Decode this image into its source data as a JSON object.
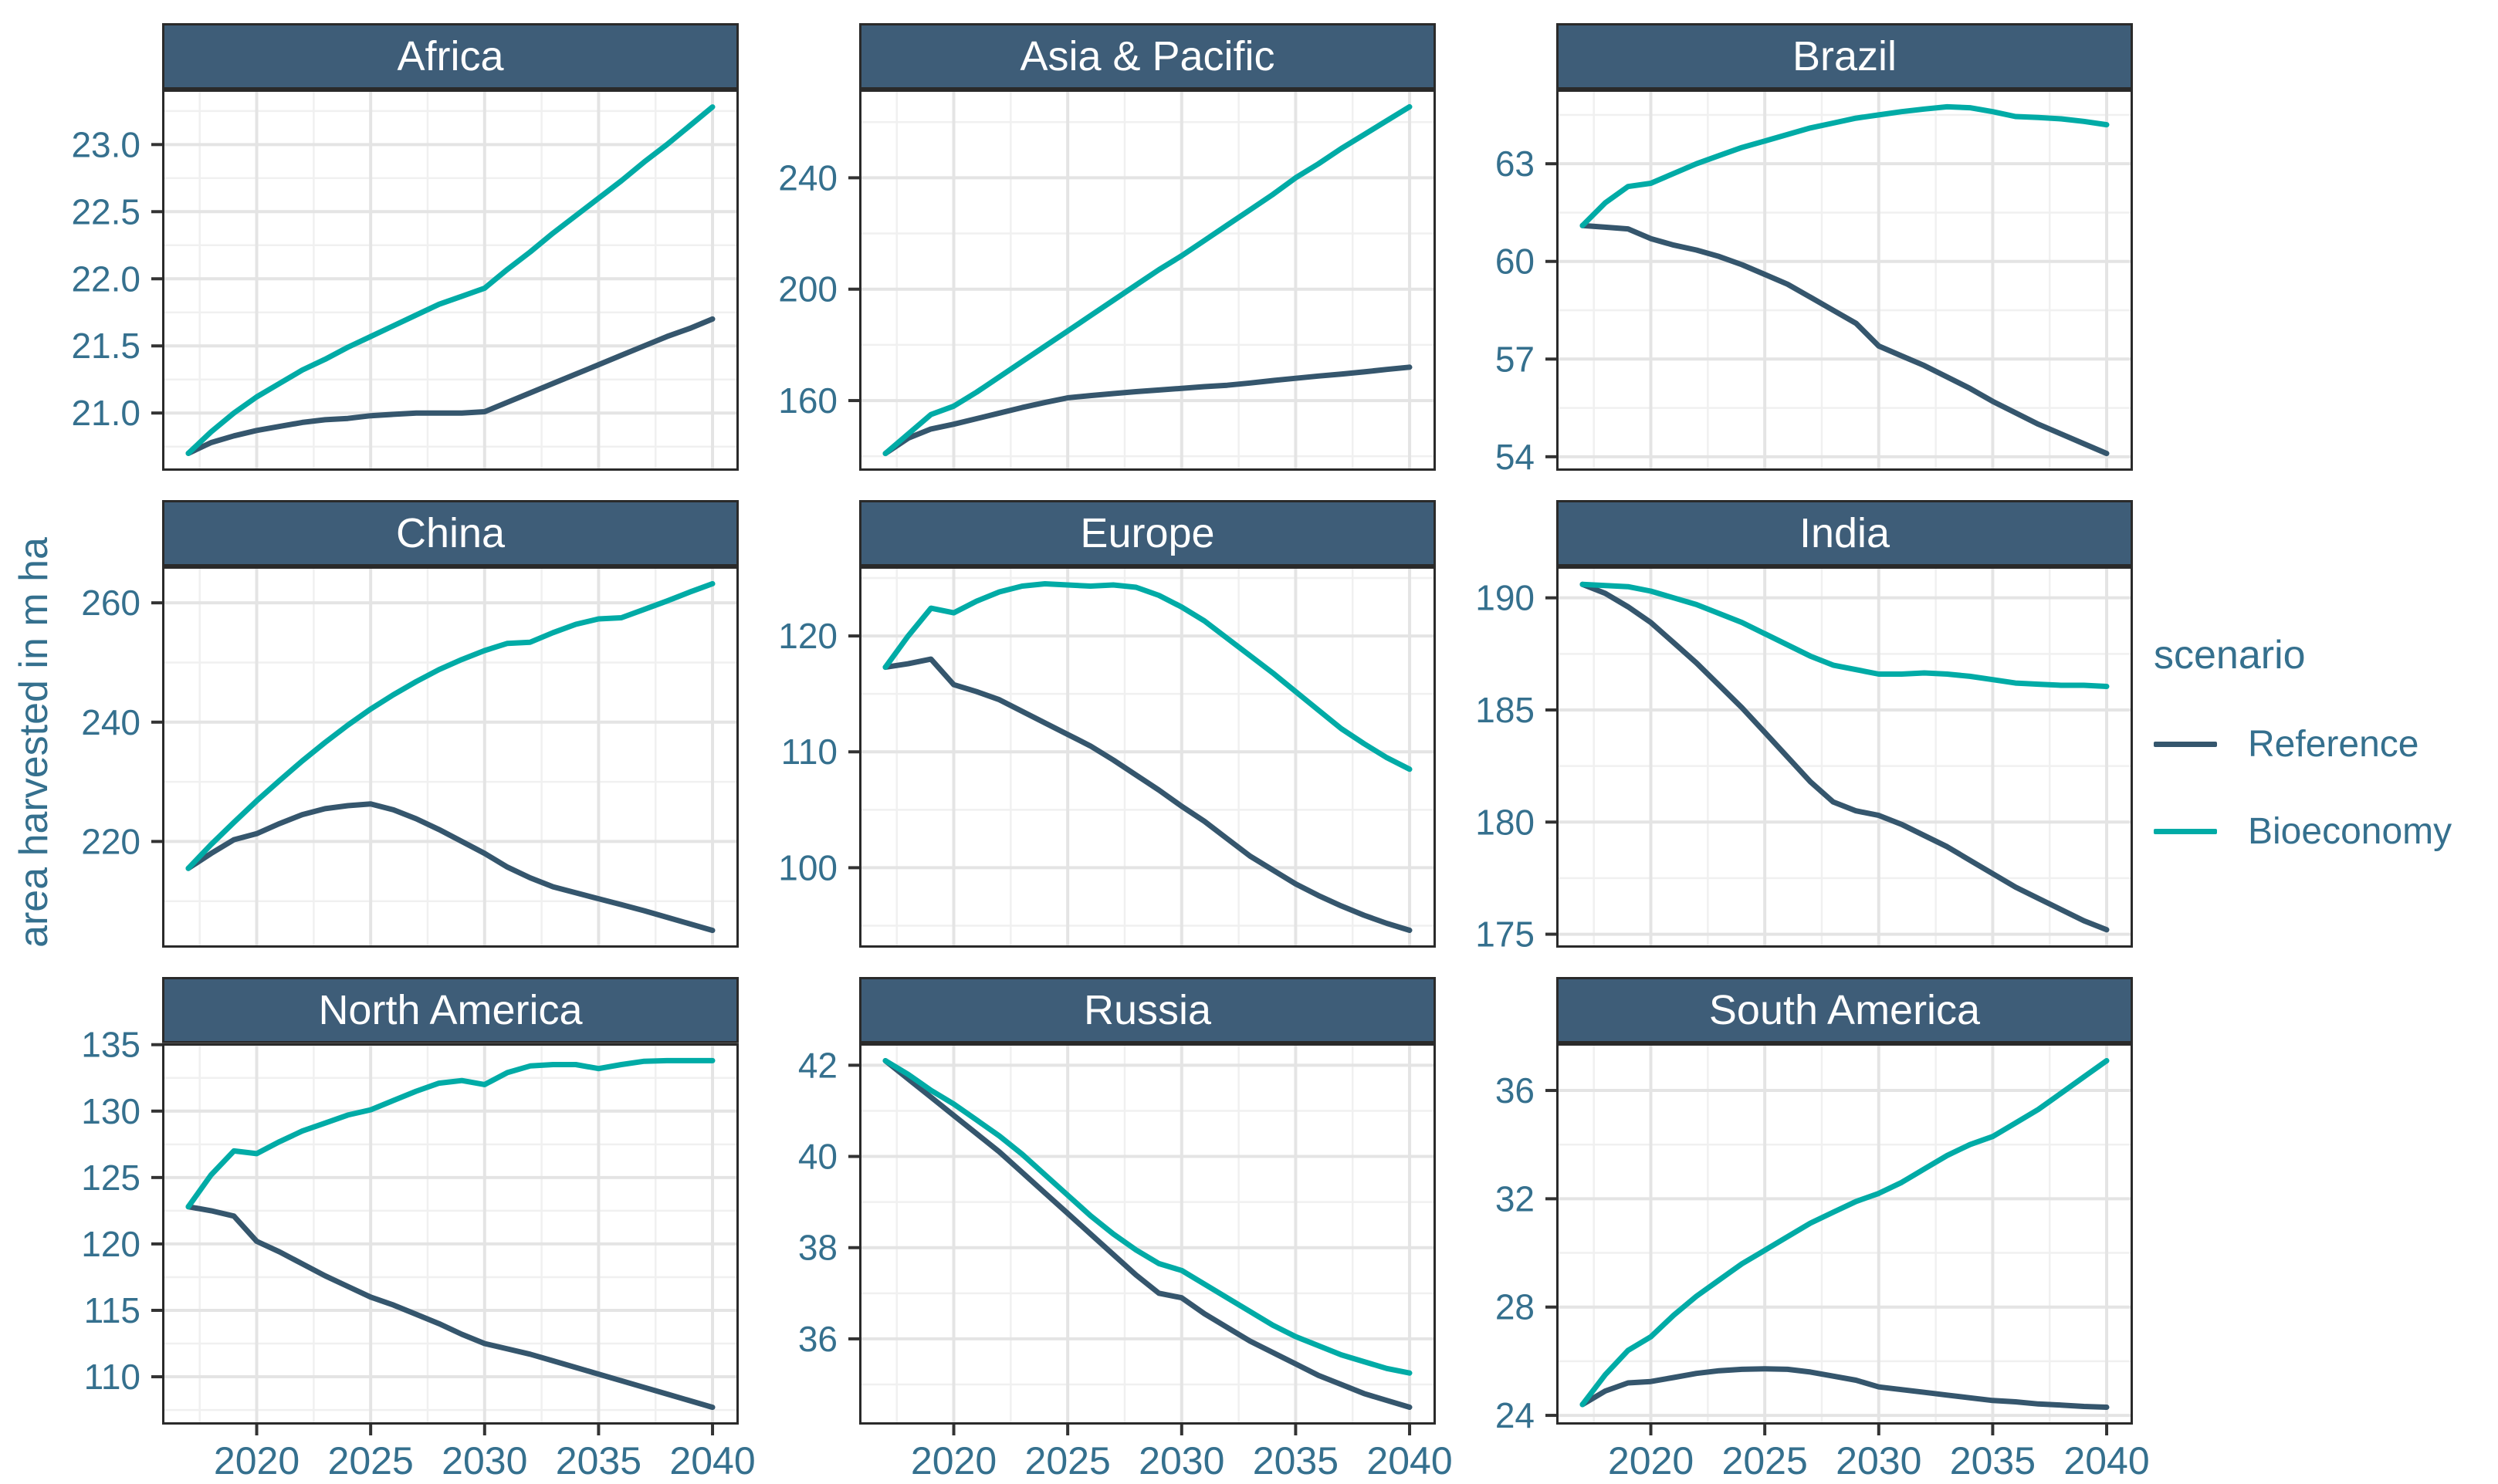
{
  "figure": {
    "y_axis_title": "area harvested in m ha",
    "legend": {
      "title": "scenario",
      "items": [
        {
          "label": "Reference",
          "color": "#35566d"
        },
        {
          "label": "Bioeconomy",
          "color": "#00aba6"
        }
      ]
    },
    "colors": {
      "strip_background": "#3e5d78",
      "strip_text": "#ffffff",
      "panel_border": "#2a2a2a",
      "axis_text": "#35708e",
      "tick_mark": "#333333",
      "grid_major": "#e4e4e4",
      "grid_minor": "#f0f0f0",
      "plot_background": "#ffffff"
    },
    "x_axis": {
      "years": [
        2017,
        2018,
        2019,
        2020,
        2021,
        2022,
        2023,
        2024,
        2025,
        2026,
        2027,
        2028,
        2029,
        2030,
        2031,
        2032,
        2033,
        2034,
        2035,
        2036,
        2037,
        2038,
        2039,
        2040
      ],
      "xlim": [
        2015.85,
        2041.15
      ],
      "xticks": [
        "2020",
        "2025",
        "2030",
        "2035",
        "2040"
      ],
      "xminor": [
        2017.5,
        2022.5,
        2027.5,
        2032.5,
        2037.5
      ]
    }
  },
  "chart_data": [
    {
      "type": "line",
      "title": "Africa",
      "ylim": [
        20.57,
        23.41
      ],
      "yticks": [
        "21.0",
        "21.5",
        "22.0",
        "22.5",
        "23.0"
      ],
      "yminor": [
        20.75,
        21.25,
        21.75,
        22.25,
        22.75,
        23.25
      ],
      "series": [
        {
          "name": "Reference",
          "values": [
            20.7,
            20.78,
            20.83,
            20.87,
            20.9,
            20.93,
            20.95,
            20.96,
            20.98,
            20.99,
            21.0,
            21.0,
            21.0,
            21.01,
            21.08,
            21.15,
            21.22,
            21.29,
            21.36,
            21.43,
            21.5,
            21.57,
            21.63,
            21.7
          ]
        },
        {
          "name": "Bioeconomy",
          "values": [
            20.7,
            20.86,
            21.0,
            21.12,
            21.22,
            21.32,
            21.4,
            21.49,
            21.57,
            21.65,
            21.73,
            21.81,
            21.87,
            21.93,
            22.07,
            22.2,
            22.34,
            22.47,
            22.6,
            22.73,
            22.87,
            23.0,
            23.14,
            23.28
          ]
        }
      ]
    },
    {
      "type": "line",
      "title": "Asia & Pacific",
      "ylim": [
        134.8,
        271.7
      ],
      "yticks": [
        "160",
        "200",
        "240"
      ],
      "yminor": [
        140,
        180,
        220,
        260
      ],
      "series": [
        {
          "name": "Reference",
          "values": [
            141,
            146.5,
            149.8,
            151.5,
            153.5,
            155.5,
            157.5,
            159.3,
            161,
            161.8,
            162.5,
            163.2,
            163.8,
            164.4,
            165,
            165.5,
            166.3,
            167.2,
            168,
            168.8,
            169.5,
            170.3,
            171.2,
            172
          ]
        },
        {
          "name": "Bioeconomy",
          "values": [
            141,
            148,
            155,
            158,
            163,
            168.5,
            174,
            179.5,
            185,
            190.5,
            196,
            201.5,
            207,
            212,
            217.5,
            223,
            228.5,
            234,
            240,
            245,
            250.5,
            255.5,
            260.5,
            265.5
          ]
        }
      ]
    },
    {
      "type": "line",
      "title": "Brazil",
      "ylim": [
        53.57,
        65.28
      ],
      "yticks": [
        "54",
        "57",
        "60",
        "63"
      ],
      "yminor": [
        55.5,
        58.5,
        61.5,
        64.5
      ],
      "series": [
        {
          "name": "Reference",
          "values": [
            61.1,
            61.05,
            61.0,
            60.7,
            60.5,
            60.35,
            60.15,
            59.9,
            59.6,
            59.3,
            58.9,
            58.5,
            58.1,
            57.4,
            57.1,
            56.8,
            56.45,
            56.1,
            55.7,
            55.35,
            55.0,
            54.7,
            54.4,
            54.1
          ]
        },
        {
          "name": "Bioeconomy",
          "values": [
            61.1,
            61.8,
            62.3,
            62.4,
            62.7,
            63.0,
            63.25,
            63.5,
            63.7,
            63.9,
            64.1,
            64.25,
            64.4,
            64.5,
            64.6,
            64.68,
            64.75,
            64.72,
            64.6,
            64.45,
            64.42,
            64.38,
            64.3,
            64.2
          ]
        }
      ]
    },
    {
      "type": "line",
      "title": "China",
      "ylim": [
        202.2,
        266.1
      ],
      "yticks": [
        "220",
        "240",
        "260"
      ],
      "yminor": [
        210,
        230,
        250
      ],
      "series": [
        {
          "name": "Reference",
          "values": [
            215.5,
            218,
            220.3,
            221.3,
            223,
            224.5,
            225.5,
            226,
            226.3,
            225.3,
            223.8,
            222,
            220,
            218,
            215.7,
            213.9,
            212.4,
            211.4,
            210.4,
            209.4,
            208.4,
            207.3,
            206.2,
            205.1
          ]
        },
        {
          "name": "Bioeconomy",
          "values": [
            215.5,
            219.5,
            223.2,
            226.8,
            230.2,
            233.5,
            236.6,
            239.5,
            242.2,
            244.6,
            246.8,
            248.8,
            250.5,
            252,
            253.2,
            253.4,
            255,
            256.4,
            257.3,
            257.5,
            258.9,
            260.3,
            261.8,
            263.2
          ]
        }
      ]
    },
    {
      "type": "line",
      "title": "Europe",
      "ylim": [
        93.1,
        126.0
      ],
      "yticks": [
        "100",
        "110",
        "120"
      ],
      "yminor": [
        95,
        105,
        115,
        125
      ],
      "series": [
        {
          "name": "Reference",
          "values": [
            117.3,
            117.6,
            118.0,
            115.8,
            115.2,
            114.5,
            113.5,
            112.5,
            111.5,
            110.5,
            109.3,
            108,
            106.7,
            105.3,
            104,
            102.5,
            101,
            99.8,
            98.6,
            97.6,
            96.7,
            95.9,
            95.2,
            94.6
          ]
        },
        {
          "name": "Bioeconomy",
          "values": [
            117.3,
            120,
            122.4,
            122.0,
            123,
            123.8,
            124.3,
            124.5,
            124.4,
            124.3,
            124.4,
            124.2,
            123.5,
            122.5,
            121.3,
            119.8,
            118.3,
            116.8,
            115.2,
            113.6,
            112,
            110.7,
            109.5,
            108.5
          ]
        }
      ]
    },
    {
      "type": "line",
      "title": "India",
      "ylim": [
        174.4,
        191.4
      ],
      "yticks": [
        "175",
        "180",
        "185",
        "190"
      ],
      "yminor": [
        177.5,
        182.5,
        187.5
      ],
      "series": [
        {
          "name": "Reference",
          "values": [
            190.6,
            190.2,
            189.6,
            188.9,
            188.0,
            187.1,
            186.1,
            185.1,
            184.0,
            182.9,
            181.8,
            180.9,
            180.5,
            180.3,
            179.9,
            179.4,
            178.9,
            178.3,
            177.7,
            177.1,
            176.6,
            176.1,
            175.6,
            175.2
          ]
        },
        {
          "name": "Bioeconomy",
          "values": [
            190.6,
            190.55,
            190.5,
            190.3,
            190.0,
            189.7,
            189.3,
            188.9,
            188.4,
            187.9,
            187.4,
            187.0,
            186.8,
            186.6,
            186.6,
            186.65,
            186.6,
            186.5,
            186.35,
            186.2,
            186.15,
            186.1,
            186.1,
            186.05
          ]
        }
      ]
    },
    {
      "type": "line",
      "title": "North America",
      "ylim": [
        106.4,
        135.1
      ],
      "yticks": [
        "110",
        "115",
        "120",
        "125",
        "130",
        "135"
      ],
      "yminor": [
        107.5,
        112.5,
        117.5,
        122.5,
        127.5,
        132.5
      ],
      "series": [
        {
          "name": "Reference",
          "values": [
            122.8,
            122.5,
            122.1,
            120.2,
            119.4,
            118.5,
            117.6,
            116.8,
            116.0,
            115.4,
            114.7,
            114.0,
            113.2,
            112.5,
            112.1,
            111.7,
            111.2,
            110.7,
            110.2,
            109.7,
            109.2,
            108.7,
            108.2,
            107.7
          ]
        },
        {
          "name": "Bioeconomy",
          "values": [
            122.8,
            125.2,
            127.0,
            126.8,
            127.7,
            128.5,
            129.1,
            129.7,
            130.1,
            130.8,
            131.5,
            132.1,
            132.3,
            132.0,
            132.9,
            133.4,
            133.5,
            133.5,
            133.2,
            133.5,
            133.75,
            133.8,
            133.8,
            133.8
          ]
        }
      ]
    },
    {
      "type": "line",
      "title": "Russia",
      "ylim": [
        34.12,
        42.48
      ],
      "yticks": [
        "36",
        "38",
        "40",
        "42"
      ],
      "yminor": [
        35,
        37,
        39,
        41
      ],
      "series": [
        {
          "name": "Reference",
          "values": [
            42.1,
            41.7,
            41.3,
            40.9,
            40.5,
            40.1,
            39.65,
            39.2,
            38.75,
            38.3,
            37.85,
            37.4,
            37.0,
            36.9,
            36.55,
            36.25,
            35.95,
            35.7,
            35.45,
            35.2,
            35.0,
            34.8,
            34.65,
            34.5
          ]
        },
        {
          "name": "Bioeconomy",
          "values": [
            42.1,
            41.8,
            41.45,
            41.15,
            40.8,
            40.45,
            40.05,
            39.6,
            39.15,
            38.7,
            38.3,
            37.95,
            37.65,
            37.5,
            37.2,
            36.9,
            36.6,
            36.3,
            36.05,
            35.85,
            35.65,
            35.5,
            35.35,
            35.25
          ]
        }
      ]
    },
    {
      "type": "line",
      "title": "South America",
      "ylim": [
        23.66,
        37.74
      ],
      "yticks": [
        "24",
        "28",
        "32",
        "36"
      ],
      "yminor": [
        26,
        30,
        34
      ],
      "series": [
        {
          "name": "Reference",
          "values": [
            24.4,
            24.9,
            25.2,
            25.25,
            25.4,
            25.55,
            25.65,
            25.7,
            25.72,
            25.7,
            25.6,
            25.45,
            25.3,
            25.05,
            24.95,
            24.85,
            24.75,
            24.65,
            24.55,
            24.5,
            24.42,
            24.38,
            24.33,
            24.3
          ]
        },
        {
          "name": "Bioeconomy",
          "values": [
            24.4,
            25.5,
            26.4,
            26.9,
            27.7,
            28.4,
            29.0,
            29.6,
            30.1,
            30.6,
            31.1,
            31.5,
            31.9,
            32.2,
            32.6,
            33.1,
            33.6,
            34.0,
            34.3,
            34.8,
            35.3,
            35.9,
            36.5,
            37.1
          ]
        }
      ]
    }
  ]
}
